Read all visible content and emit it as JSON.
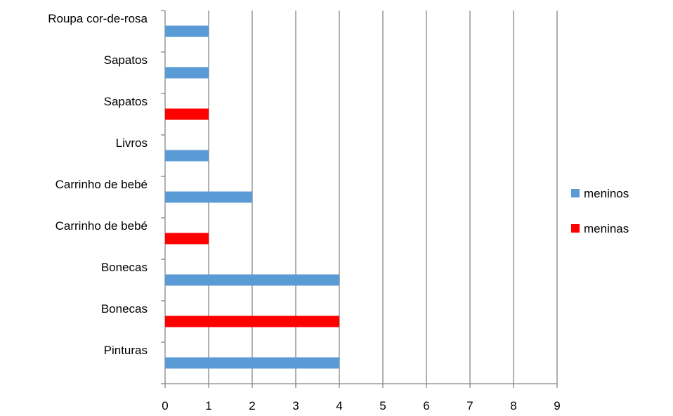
{
  "chart_data": {
    "type": "bar",
    "orientation": "horizontal",
    "xlim": [
      0,
      9
    ],
    "x_ticks": [
      "0",
      "1",
      "2",
      "3",
      "4",
      "5",
      "6",
      "7",
      "8",
      "9"
    ],
    "grid": "vertical",
    "legend_position": "right",
    "categories": [
      "Pinturas",
      "Bonecas",
      "Bonecas",
      "Carrinho de bebé",
      "Carrinho de bebé",
      "Livros",
      "Sapatos",
      "Sapatos",
      "Roupa cor-de-rosa"
    ],
    "bars": [
      {
        "category": "Pinturas",
        "series": "meninos",
        "value": 4
      },
      {
        "category": "Bonecas",
        "series": "meninas",
        "value": 4
      },
      {
        "category": "Bonecas",
        "series": "meninos",
        "value": 4
      },
      {
        "category": "Carrinho de bebé",
        "series": "meninas",
        "value": 1
      },
      {
        "category": "Carrinho de bebé",
        "series": "meninos",
        "value": 2
      },
      {
        "category": "Livros",
        "series": "meninos",
        "value": 1
      },
      {
        "category": "Sapatos",
        "series": "meninas",
        "value": 1
      },
      {
        "category": "Sapatos",
        "series": "meninos",
        "value": 1
      },
      {
        "category": "Roupa cor-de-rosa",
        "series": "meninos",
        "value": 1
      }
    ],
    "series": [
      {
        "name": "meninos",
        "color": "#5B9BD5"
      },
      {
        "name": "meninas",
        "color": "#FF0000"
      }
    ]
  }
}
